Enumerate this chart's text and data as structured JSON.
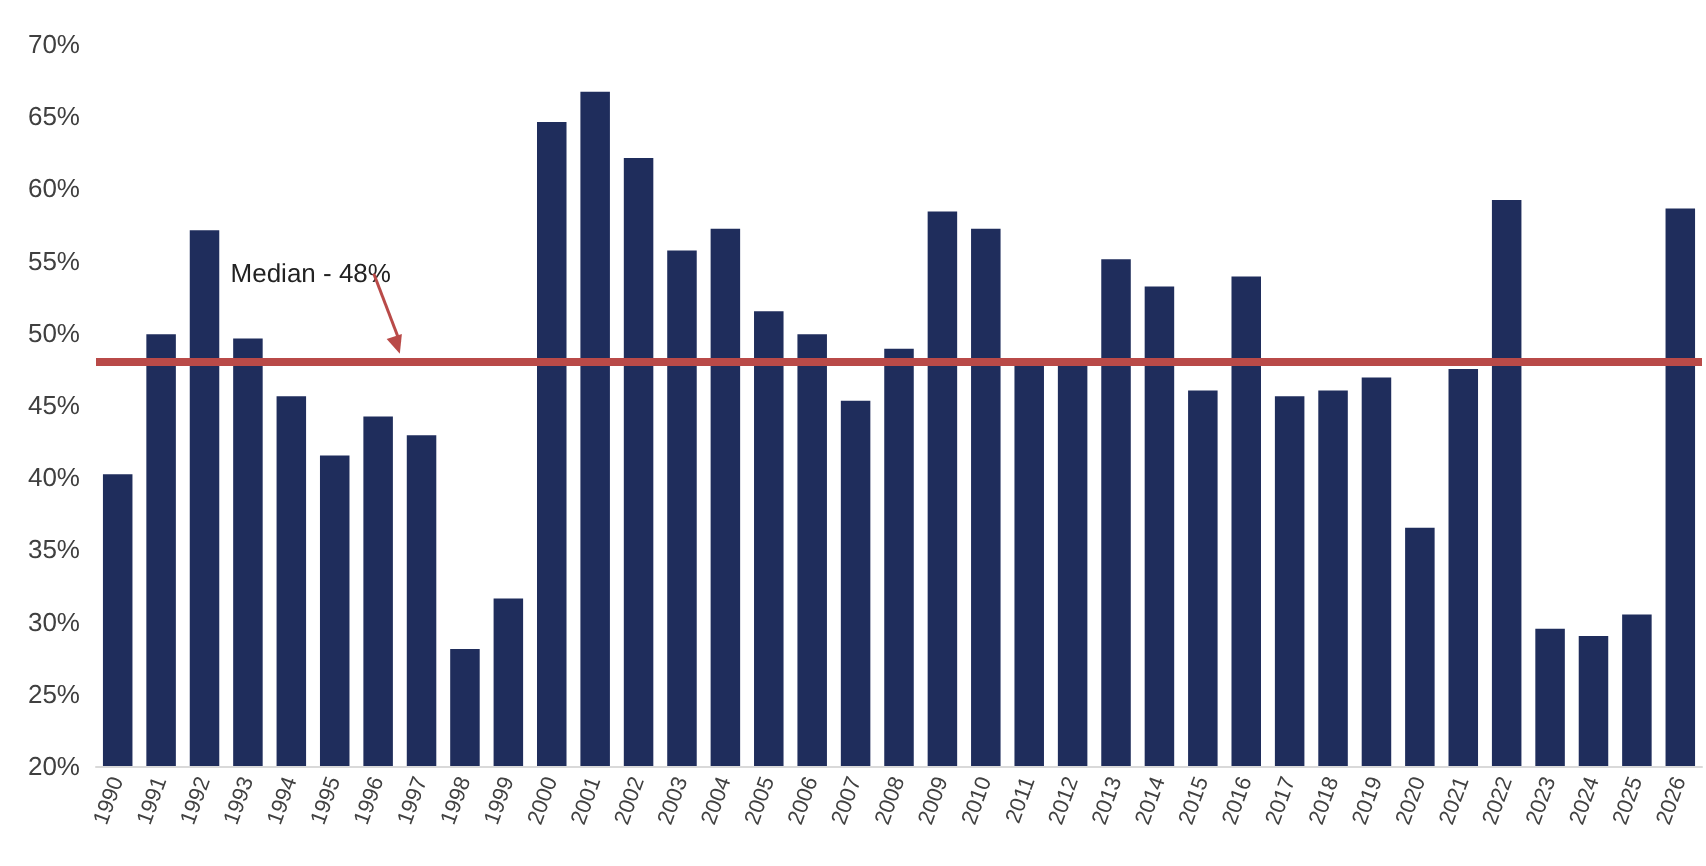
{
  "chart_data": {
    "type": "bar",
    "categories": [
      "1990",
      "1991",
      "1992",
      "1993",
      "1994",
      "1995",
      "1996",
      "1997",
      "1998",
      "1999",
      "2000",
      "2001",
      "2002",
      "2003",
      "2004",
      "2005",
      "2006",
      "2007",
      "2008",
      "2009",
      "2010",
      "2011",
      "2012",
      "2013",
      "2014",
      "2015",
      "2016",
      "2017",
      "2018",
      "2019",
      "2020",
      "2021",
      "2022",
      "2023",
      "2024",
      "2025",
      "2026"
    ],
    "values": [
      40.2,
      49.9,
      57.1,
      49.6,
      45.6,
      41.5,
      44.2,
      42.9,
      28.1,
      31.6,
      64.6,
      66.7,
      62.1,
      55.7,
      57.2,
      51.5,
      49.9,
      45.3,
      48.9,
      58.4,
      57.2,
      47.7,
      48.0,
      55.1,
      53.2,
      46.0,
      53.9,
      45.6,
      46.0,
      46.9,
      36.5,
      47.5,
      59.2,
      29.5,
      29.0,
      30.5,
      58.6
    ],
    "color": "#1f2d5c",
    "ylim": [
      20,
      70
    ],
    "yticks": [
      {
        "value": 20,
        "label": "20%"
      },
      {
        "value": 25,
        "label": "25%"
      },
      {
        "value": 30,
        "label": "30%"
      },
      {
        "value": 35,
        "label": "35%"
      },
      {
        "value": 40,
        "label": "40%"
      },
      {
        "value": 45,
        "label": "45%"
      },
      {
        "value": 50,
        "label": "50%"
      },
      {
        "value": 55,
        "label": "55%"
      },
      {
        "value": 60,
        "label": "60%"
      },
      {
        "value": 65,
        "label": "65%"
      },
      {
        "value": 70,
        "label": "70%"
      }
    ],
    "ref_lines": [
      {
        "axis": "y",
        "value": 48,
        "label": "Median - 48%",
        "color": "#b94a48"
      }
    ],
    "grid": false
  }
}
